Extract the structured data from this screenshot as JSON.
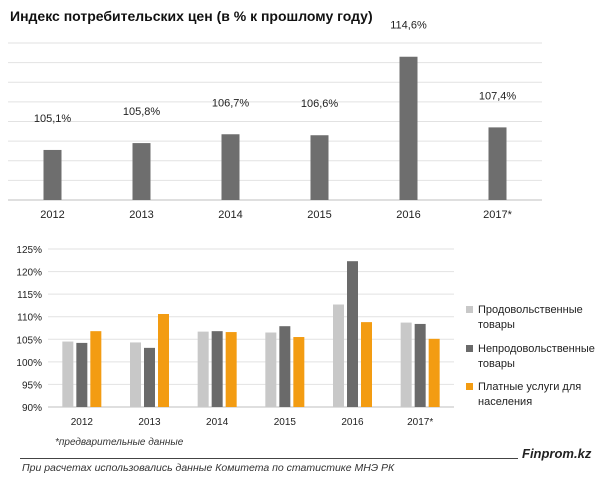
{
  "title": "Индекс потребительских цен (в % к прошлому году)",
  "footnote": "*предварительные данные",
  "source": "При расчетах использовались данные Комитета по статистике МНЭ РК",
  "brand": "Finprom.kz",
  "colors": {
    "bar_top": "#6e6e6e",
    "food": "#c8c8c8",
    "nonfood": "#6a6a6a",
    "services": "#f39c12",
    "grid": "#e2e2e2",
    "axis": "#bfbfbf"
  },
  "chart_data": [
    {
      "type": "bar",
      "categories": [
        "2012",
        "2013",
        "2014",
        "2015",
        "2016",
        "2017*"
      ],
      "values": [
        105.1,
        105.8,
        106.7,
        106.6,
        114.6,
        107.4
      ],
      "data_labels": [
        "105,1%",
        "105,8%",
        "106,7%",
        "106,6%",
        "114,6%",
        "107,4%"
      ],
      "ylim": [
        100,
        116
      ],
      "grid": true
    },
    {
      "type": "bar",
      "categories": [
        "2012",
        "2013",
        "2014",
        "2015",
        "2016",
        "2017*"
      ],
      "series": [
        {
          "name": "Продовольственные товары",
          "values": [
            104.5,
            104.3,
            106.7,
            106.5,
            112.7,
            108.7
          ]
        },
        {
          "name": "Непродовольственные товары",
          "values": [
            104.2,
            103.1,
            106.8,
            107.9,
            122.3,
            108.4
          ]
        },
        {
          "name": "Платные услуги для населения",
          "values": [
            106.8,
            110.6,
            106.6,
            105.5,
            108.8,
            105.1
          ]
        }
      ],
      "yticks": [
        "125%",
        "120%",
        "115%",
        "110%",
        "105%",
        "100%",
        "95%",
        "90%"
      ],
      "ylim": [
        90,
        125
      ],
      "grid": true,
      "legend": "right"
    }
  ]
}
